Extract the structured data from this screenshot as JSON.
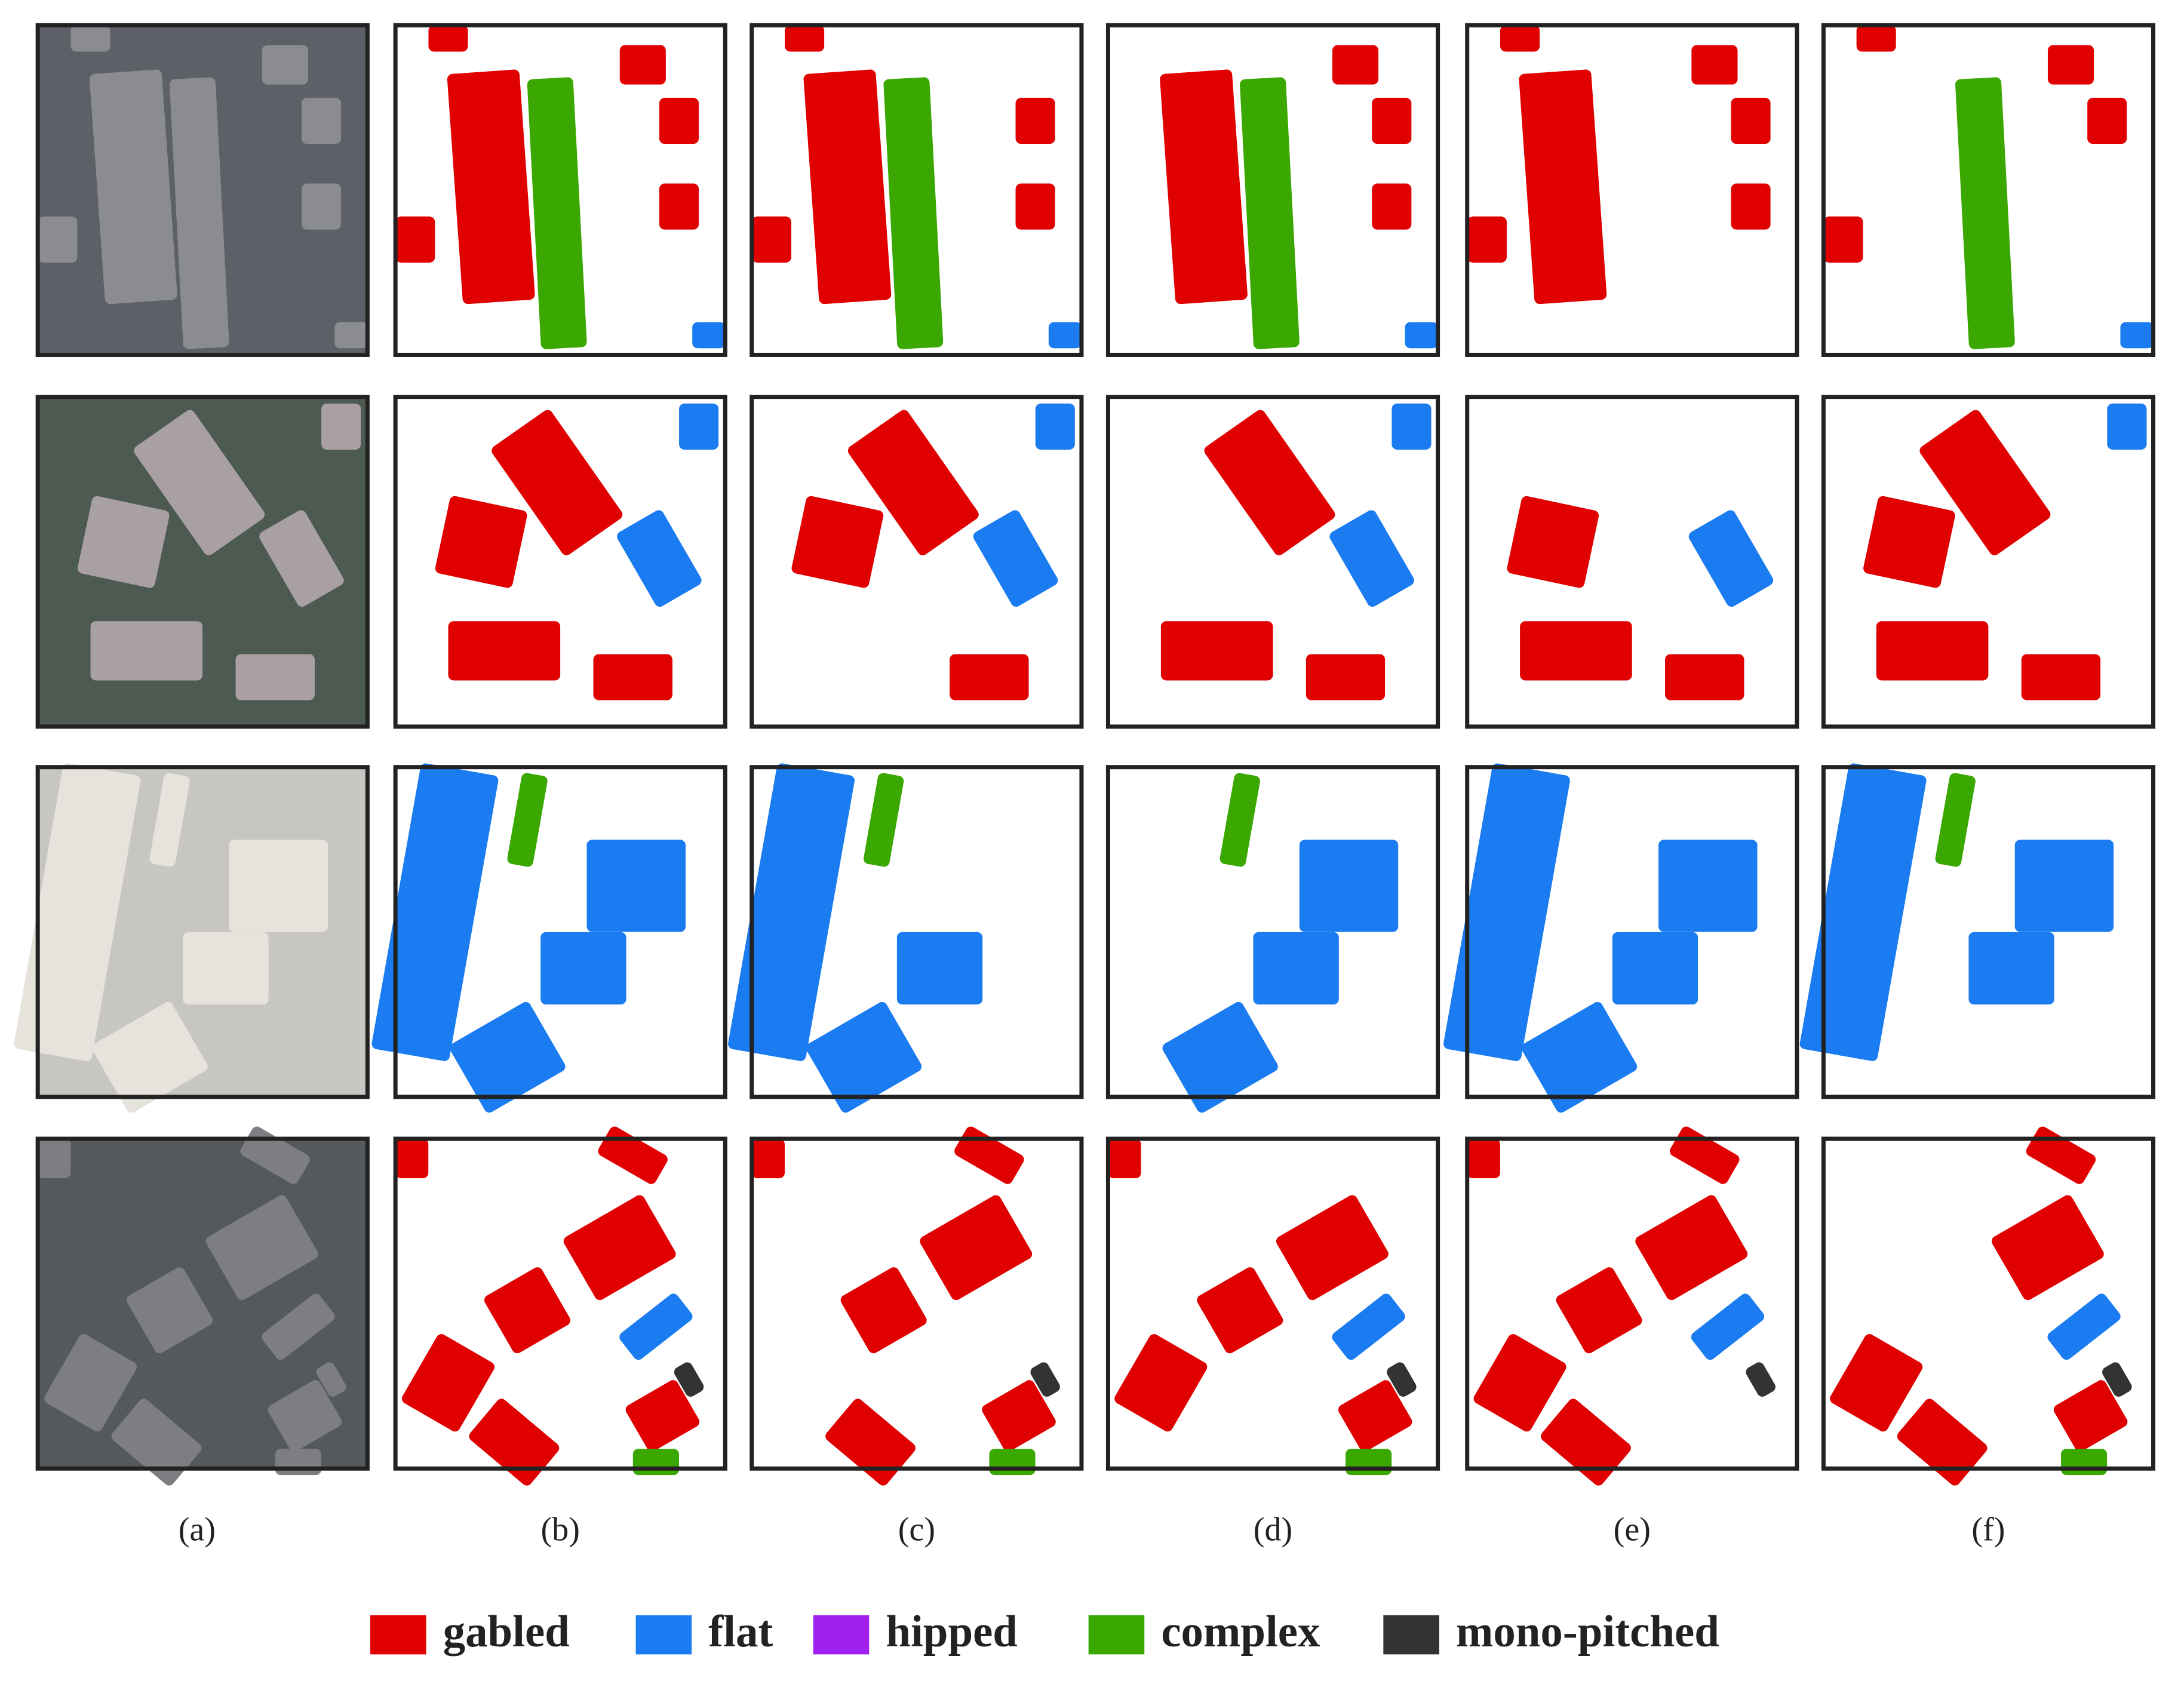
{
  "figure": {
    "column_labels": [
      "(a)",
      "(b)",
      "(c)",
      "(d)",
      "(e)",
      "(f)"
    ],
    "legend": [
      {
        "label": "gabled",
        "color": "#e00000"
      },
      {
        "label": "flat",
        "color": "#1a7cf0"
      },
      {
        "label": "hipped",
        "color": "#a020f0"
      },
      {
        "label": "complex",
        "color": "#3aa800"
      },
      {
        "label": "mono-pitched",
        "color": "#333333"
      }
    ]
  }
}
